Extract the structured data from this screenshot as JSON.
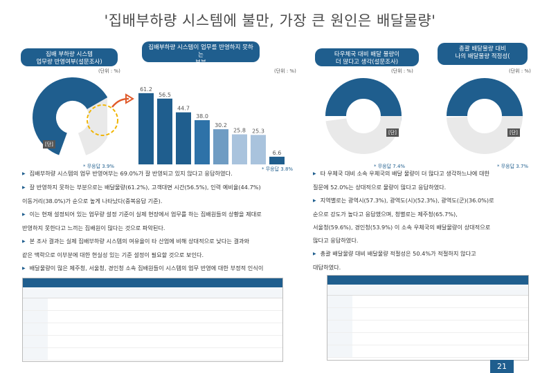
{
  "title": "'집배부하량 시스템에 불만, 가장 큰 원인은 배달물량'",
  "unit_label": "(단위 : %)",
  "panels": [
    {
      "header": "집배 부하량 시스템\n업무량 반영여부(설문조사)",
      "note": "* 무응답 3.9%"
    },
    {
      "header": "집배부하량 시스템이 업무를 반영하지 못하는\n부분",
      "note": "* 무응답 3.8%"
    },
    {
      "header": "타우체국 대비 배달 물량이\n더 많다고 생각(설문조사)",
      "note": "* 무응답 7.4%"
    },
    {
      "header": "총괄 배달물량 대비\n나의 배달물량 적정성(",
      "note": "* 무응답 3.7%"
    }
  ],
  "donut_badges": [
    "[단]",
    "[단]",
    "[단]"
  ],
  "chart_data": {
    "type": "bar",
    "title": "집배부하량 시스템이 업무를 반영하지 못하는 부분",
    "values": [
      61.2,
      56.5,
      44.7,
      38.0,
      30.2,
      25.8,
      25.3,
      6.6
    ],
    "colors": [
      "#1f5e8e",
      "#1f5e8e",
      "#1f5e8e",
      "#2e72a8",
      "#6f9cc3",
      "#a9c3dd",
      "#a9c3dd",
      "#1f5e8e"
    ],
    "ylim": [
      0,
      70
    ]
  },
  "para_left": [
    {
      "t": "집배부하량 시스템의 업무 반영여부는 69.0%가 잘 반영되고 있지 않다고 응답하였다.",
      "bullet": true
    },
    {
      "t": "잘 반영하지 못하는 부분으로는 배달물량(61.2%), 고객대면 시간(56.5%), 인력 예비율(44.7%)",
      "bullet": true
    },
    {
      "t": "이동거리(38.0%)가 순으로 높게 나타났다(중복응답 기준).",
      "bullet": false
    },
    {
      "t": "이는 현재 설정되어 있는 업무량 설정 기준이 실제 현장에서 업무를 하는 집배원들의 상황을 제대로",
      "bullet": true
    },
    {
      "t": "반영하지 못한다고 느끼는 집배원이 많다는 것으로 파악된다.",
      "bullet": false
    },
    {
      "t": "본 조사 결과는 실제 집배부하량 시스템의 여유율이 타 산업에 비해 상대적으로 낮다는 결과와",
      "bullet": true
    },
    {
      "t": "같은 맥락으로 이부분에 대한 현실성 있는 기준 설정이 필요할 것으로 보인다.",
      "bullet": false
    },
    {
      "t": "배달물량이 많은 제주청, 서울청, 경인청 소속 집배원들이 시스템의 업무 반영에 대한 부정적 인식이",
      "bullet": true
    },
    {
      "t": "강한 것을 확인할 수 있다.",
      "bullet": false
    }
  ],
  "para_right": [
    {
      "t": "타 우체국 대비 소속 우체국의 배달 물량이 더 많다고 생각하느냐에 대한",
      "bullet": true
    },
    {
      "t": "질문에 52.0%는 상대적으로 물량이 많다고 응답하였다.",
      "bullet": false
    },
    {
      "t": "지역별로는 광역시(57.3%), 광역도(시)(52.3%), 광역도(군)(36.0%)로",
      "bullet": true
    },
    {
      "t": "순으로 강도가 높다고 응답했으며, 청별로는 제주청(65.7%),",
      "bullet": false
    },
    {
      "t": "서울청(59.6%), 경인청(53.9%) 이 소속 우체국의 배달물량이 상대적으로",
      "bullet": false
    },
    {
      "t": "많다고 응답하였다.",
      "bullet": false
    },
    {
      "t": "총괄 배달물량 대비 배달물량 적절성은 50.4%가 적절하지 않다고",
      "bullet": true
    },
    {
      "t": "대답하였다.",
      "bullet": false
    }
  ],
  "page_number": "21"
}
